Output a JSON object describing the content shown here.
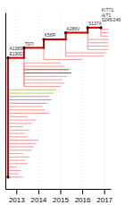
{
  "chart_data": {
    "type": "tree",
    "xlim": [
      2012.5,
      2017.3
    ],
    "ylim": [
      0,
      105
    ],
    "xticks": [
      2013,
      2014,
      2015,
      2016,
      2017
    ],
    "grid": true,
    "tick_labels": "x",
    "trunk": {
      "color": "#cc0000",
      "segments": [
        {
          "x0": 2012.62,
          "y0": 7,
          "x1": 2012.62,
          "y1": 78
        },
        {
          "x0": 2012.62,
          "y0": 78,
          "x1": 2013.35,
          "y1": 78
        },
        {
          "x0": 2013.35,
          "y0": 78,
          "x1": 2013.35,
          "y1": 84
        },
        {
          "x0": 2013.35,
          "y0": 84,
          "x1": 2014.25,
          "y1": 84
        },
        {
          "x0": 2014.25,
          "y0": 84,
          "x1": 2014.25,
          "y1": 89
        },
        {
          "x0": 2014.25,
          "y0": 89,
          "x1": 2015.25,
          "y1": 89
        },
        {
          "x0": 2015.25,
          "y0": 89,
          "x1": 2015.25,
          "y1": 93
        },
        {
          "x0": 2015.25,
          "y0": 93,
          "x1": 2016.25,
          "y1": 93
        },
        {
          "x0": 2016.25,
          "y0": 93,
          "x1": 2016.25,
          "y1": 96
        },
        {
          "x0": 2016.25,
          "y0": 96,
          "x1": 2016.85,
          "y1": 96
        }
      ]
    },
    "nodes": {
      "color": "#000000",
      "x": [
        2012.62,
        2012.62,
        2013.35,
        2014.25,
        2015.25,
        2016.25,
        2016.85
      ],
      "y": [
        7,
        78,
        84,
        89,
        93,
        96,
        96
      ]
    },
    "annotations": [
      {
        "x": 2012.68,
        "y": 79,
        "text": "A138S\nE190D"
      },
      {
        "x": 2013.38,
        "y": 85,
        "text": "T97I"
      },
      {
        "x": 2014.28,
        "y": 90,
        "text": "K58R"
      },
      {
        "x": 2015.28,
        "y": 94,
        "text": "A286V"
      },
      {
        "x": 2016.28,
        "y": 97,
        "text": "S137A"
      },
      {
        "x": 2016.88,
        "y": 99,
        "text": "K/T71\nA/T1\nS245/248"
      }
    ],
    "branches": [
      {
        "x0": 2012.62,
        "y0": 7,
        "x1": 2013.3,
        "y1": 7,
        "color": "#f08080"
      },
      {
        "x0": 2012.62,
        "y0": 9,
        "x1": 2013.1,
        "y1": 9,
        "color": "#f08080"
      },
      {
        "x0": 2012.62,
        "y0": 11,
        "x1": 2013.2,
        "y1": 11,
        "color": "#f08080"
      },
      {
        "x0": 2012.62,
        "y0": 13,
        "x1": 2013.0,
        "y1": 13,
        "color": "#f08080"
      },
      {
        "x0": 2012.62,
        "y0": 15,
        "x1": 2013.5,
        "y1": 15,
        "color": "#f08080"
      },
      {
        "x0": 2012.62,
        "y0": 17,
        "x1": 2013.4,
        "y1": 17,
        "color": "#f08080"
      },
      {
        "x0": 2012.62,
        "y0": 19,
        "x1": 2013.6,
        "y1": 19,
        "color": "#f08080"
      },
      {
        "x0": 2012.62,
        "y0": 21,
        "x1": 2013.3,
        "y1": 21,
        "color": "#f08080"
      },
      {
        "x0": 2012.62,
        "y0": 23,
        "x1": 2013.7,
        "y1": 23,
        "color": "#f08080"
      },
      {
        "x0": 2012.62,
        "y0": 25,
        "x1": 2013.8,
        "y1": 25,
        "color": "#f08080"
      },
      {
        "x0": 2012.62,
        "y0": 27,
        "x1": 2013.9,
        "y1": 27,
        "color": "#f08080"
      },
      {
        "x0": 2012.62,
        "y0": 29,
        "x1": 2014.0,
        "y1": 29,
        "color": "#f08080"
      },
      {
        "x0": 2012.62,
        "y0": 31,
        "x1": 2013.5,
        "y1": 31,
        "color": "#f08080"
      },
      {
        "x0": 2012.62,
        "y0": 33,
        "x1": 2013.4,
        "y1": 33,
        "color": "#f08080"
      },
      {
        "x0": 2012.62,
        "y0": 35,
        "x1": 2013.6,
        "y1": 35,
        "color": "#f08080"
      },
      {
        "x0": 2012.62,
        "y0": 37,
        "x1": 2013.3,
        "y1": 37,
        "color": "#f08080"
      },
      {
        "x0": 2012.62,
        "y0": 39,
        "x1": 2013.7,
        "y1": 39,
        "color": "#f08080"
      },
      {
        "x0": 2012.62,
        "y0": 41,
        "x1": 2013.9,
        "y1": 41,
        "color": "#f08080"
      },
      {
        "x0": 2012.62,
        "y0": 43,
        "x1": 2013.5,
        "y1": 43,
        "color": "#f08080"
      },
      {
        "x0": 2012.62,
        "y0": 45,
        "x1": 2014.5,
        "y1": 45,
        "color": "#f08080"
      },
      {
        "x0": 2012.62,
        "y0": 47,
        "x1": 2014.3,
        "y1": 47,
        "color": "#f08080"
      },
      {
        "x0": 2012.62,
        "y0": 49,
        "x1": 2014.2,
        "y1": 49,
        "color": "#f08080"
      },
      {
        "x0": 2012.62,
        "y0": 51,
        "x1": 2014.4,
        "y1": 51,
        "color": "#cc6699"
      },
      {
        "x0": 2012.62,
        "y0": 53,
        "x1": 2014.6,
        "y1": 53,
        "color": "#cc6699"
      },
      {
        "x0": 2012.62,
        "y0": 55,
        "x1": 2014.5,
        "y1": 55,
        "color": "#9988cc"
      },
      {
        "x0": 2012.62,
        "y0": 57,
        "x1": 2014.7,
        "y1": 57,
        "color": "#aab840"
      },
      {
        "x0": 2012.62,
        "y0": 59,
        "x1": 2014.8,
        "y1": 59,
        "color": "#aab840"
      },
      {
        "x0": 2013.35,
        "y0": 61,
        "x1": 2015.0,
        "y1": 61,
        "color": "#f08080"
      },
      {
        "x0": 2013.35,
        "y0": 63,
        "x1": 2015.2,
        "y1": 63,
        "color": "#f08080"
      },
      {
        "x0": 2013.35,
        "y0": 65,
        "x1": 2015.1,
        "y1": 65,
        "color": "#f08080"
      },
      {
        "x0": 2013.35,
        "y0": 67,
        "x1": 2015.3,
        "y1": 67,
        "color": "#f08080"
      },
      {
        "x0": 2013.35,
        "y0": 69,
        "x1": 2015.5,
        "y1": 69,
        "color": "#cc0000"
      },
      {
        "x0": 2013.35,
        "y0": 71,
        "x1": 2015.4,
        "y1": 71,
        "color": "#cc0000"
      },
      {
        "x0": 2013.35,
        "y0": 73,
        "x1": 2015.2,
        "y1": 73,
        "color": "#f08080"
      },
      {
        "x0": 2013.35,
        "y0": 75,
        "x1": 2015.0,
        "y1": 75,
        "color": "#f08080"
      },
      {
        "x0": 2014.25,
        "y0": 77,
        "x1": 2016.0,
        "y1": 77,
        "color": "#f08080"
      },
      {
        "x0": 2015.25,
        "y0": 79,
        "x1": 2017.0,
        "y1": 79,
        "color": "#f08080"
      },
      {
        "x0": 2015.25,
        "y0": 81,
        "x1": 2017.1,
        "y1": 81,
        "color": "#f08080"
      },
      {
        "x0": 2016.25,
        "y0": 83,
        "x1": 2017.2,
        "y1": 83,
        "color": "#f08080"
      },
      {
        "x0": 2016.25,
        "y0": 85,
        "x1": 2017.2,
        "y1": 85,
        "color": "#f08080"
      },
      {
        "x0": 2016.25,
        "y0": 87,
        "x1": 2017.2,
        "y1": 87,
        "color": "#f08080"
      },
      {
        "x0": 2016.25,
        "y0": 89,
        "x1": 2017.2,
        "y1": 89,
        "color": "#f08080"
      },
      {
        "x0": 2016.85,
        "y0": 91,
        "x1": 2017.2,
        "y1": 91,
        "color": "#f08080"
      },
      {
        "x0": 2016.85,
        "y0": 93,
        "x1": 2017.2,
        "y1": 93,
        "color": "#f08080"
      },
      {
        "x0": 2016.85,
        "y0": 95,
        "x1": 2017.2,
        "y1": 95,
        "color": "#f08080"
      }
    ],
    "connectors": [
      {
        "x": 2012.62,
        "y0": 7,
        "y1": 78,
        "color": "#f08080"
      },
      {
        "x": 2013.35,
        "y0": 61,
        "y1": 78,
        "color": "#f08080"
      },
      {
        "x": 2013.35,
        "y0": 61,
        "y1": 75,
        "color": "#f08080"
      },
      {
        "x": 2014.25,
        "y0": 77,
        "y1": 84,
        "color": "#f08080"
      },
      {
        "x": 2015.25,
        "y0": 79,
        "y1": 89,
        "color": "#f08080"
      },
      {
        "x": 2016.25,
        "y0": 83,
        "y1": 93,
        "color": "#f08080"
      },
      {
        "x": 2016.85,
        "y0": 91,
        "y1": 96,
        "color": "#f08080"
      }
    ]
  }
}
